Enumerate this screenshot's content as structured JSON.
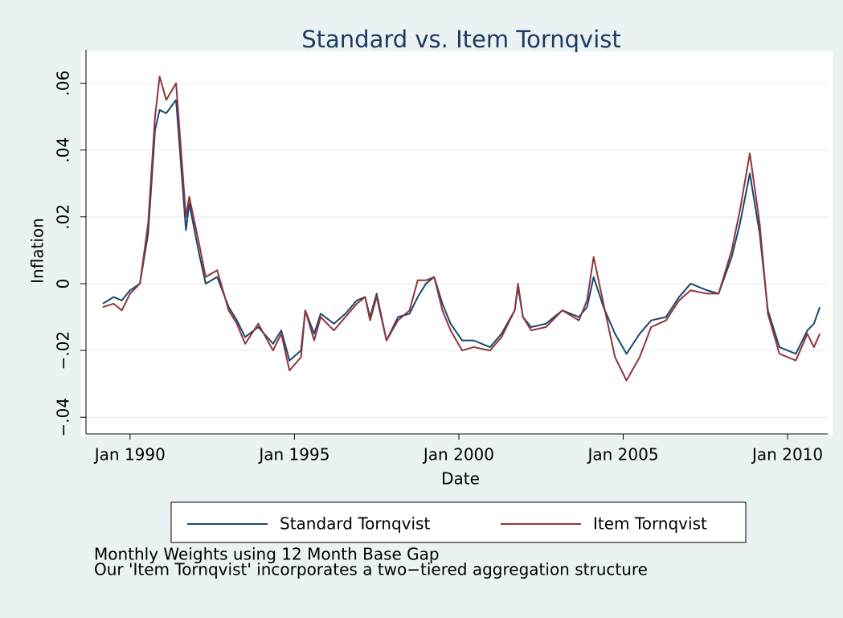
{
  "chart_data": {
    "type": "line",
    "title": "Standard vs. Item Tornqvist",
    "xlabel": "Date",
    "ylabel": "Inflation",
    "notes": [
      "Monthly Weights using 12 Month Base Gap",
      "Our 'Item Tornqvist' incorporates a two−tiered aggregation structure"
    ],
    "x": [
      1989.17,
      1989.5,
      1989.75,
      1990.0,
      1990.3,
      1990.55,
      1990.76,
      1990.9,
      1991.1,
      1991.4,
      1991.7,
      1991.8,
      1992.1,
      1992.3,
      1992.65,
      1993.0,
      1993.25,
      1993.5,
      1993.9,
      1994.35,
      1994.6,
      1994.85,
      1995.2,
      1995.33,
      1995.6,
      1995.8,
      1996.2,
      1996.55,
      1996.9,
      1997.15,
      1997.3,
      1997.5,
      1997.8,
      1998.15,
      1998.5,
      1998.75,
      1999.0,
      1999.25,
      1999.5,
      1999.75,
      2000.1,
      2000.45,
      2000.95,
      2001.3,
      2001.7,
      2001.8,
      2001.95,
      2002.2,
      2002.65,
      2003.15,
      2003.65,
      2003.9,
      2004.1,
      2004.4,
      2004.75,
      2005.1,
      2005.5,
      2005.85,
      2006.3,
      2006.7,
      2007.05,
      2007.55,
      2007.9,
      2008.3,
      2008.55,
      2008.85,
      2009.15,
      2009.4,
      2009.75,
      2010.25,
      2010.6,
      2010.8,
      2010.98
    ],
    "series": [
      {
        "name": "Standard Tornqvist",
        "color": "#1a476f",
        "values": [
          -0.006,
          -0.004,
          -0.005,
          -0.002,
          0.0,
          0.015,
          0.046,
          0.052,
          0.051,
          0.055,
          0.016,
          0.024,
          0.009,
          0.0,
          0.002,
          -0.007,
          -0.011,
          -0.016,
          -0.013,
          -0.018,
          -0.014,
          -0.023,
          -0.02,
          -0.008,
          -0.015,
          -0.009,
          -0.012,
          -0.009,
          -0.005,
          -0.004,
          -0.01,
          -0.003,
          -0.017,
          -0.01,
          -0.009,
          -0.004,
          0.0,
          0.002,
          -0.006,
          -0.012,
          -0.017,
          -0.017,
          -0.019,
          -0.015,
          -0.008,
          -0.001,
          -0.01,
          -0.013,
          -0.012,
          -0.008,
          -0.01,
          -0.007,
          0.002,
          -0.007,
          -0.015,
          -0.021,
          -0.015,
          -0.011,
          -0.01,
          -0.004,
          0.0,
          -0.002,
          -0.003,
          0.008,
          0.018,
          0.033,
          0.015,
          -0.008,
          -0.019,
          -0.021,
          -0.014,
          -0.012,
          -0.007
        ]
      },
      {
        "name": "Item Tornqvist",
        "color": "#90353b",
        "values": [
          -0.007,
          -0.006,
          -0.008,
          -0.003,
          0.0,
          0.018,
          0.05,
          0.062,
          0.055,
          0.06,
          0.02,
          0.026,
          0.012,
          0.002,
          0.004,
          -0.008,
          -0.012,
          -0.018,
          -0.012,
          -0.02,
          -0.015,
          -0.026,
          -0.022,
          -0.008,
          -0.017,
          -0.01,
          -0.014,
          -0.01,
          -0.006,
          -0.004,
          -0.011,
          -0.004,
          -0.017,
          -0.011,
          -0.008,
          0.001,
          0.001,
          0.002,
          -0.008,
          -0.014,
          -0.02,
          -0.019,
          -0.02,
          -0.016,
          -0.008,
          0.0,
          -0.01,
          -0.014,
          -0.013,
          -0.008,
          -0.011,
          -0.005,
          0.008,
          -0.006,
          -0.022,
          -0.029,
          -0.022,
          -0.013,
          -0.011,
          -0.005,
          -0.002,
          -0.003,
          -0.003,
          0.01,
          0.022,
          0.039,
          0.018,
          -0.009,
          -0.021,
          -0.023,
          -0.015,
          -0.019,
          -0.015
        ]
      }
    ],
    "xlim": [
      1988.66,
      2011.22
    ],
    "ylim": [
      -0.045,
      0.07
    ],
    "xticks": [
      {
        "value": 1990,
        "label": "Jan 1990"
      },
      {
        "value": 1995,
        "label": "Jan 1995"
      },
      {
        "value": 2000,
        "label": "Jan 2000"
      },
      {
        "value": 2005,
        "label": "Jan 2005"
      },
      {
        "value": 2010,
        "label": "Jan 2010"
      }
    ],
    "yticks": [
      {
        "value": -0.04,
        "label": "−.04"
      },
      {
        "value": -0.02,
        "label": "−.02"
      },
      0,
      {
        "value": 0.02,
        "label": ".02"
      },
      {
        "value": 0.04,
        "label": ".04"
      },
      {
        "value": 0.06,
        "label": ".06"
      }
    ],
    "grid": true
  }
}
